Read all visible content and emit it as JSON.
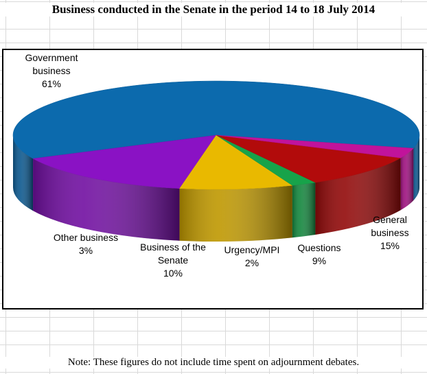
{
  "title": "Business conducted in the Senate in the period 14 to 18 July 2014",
  "note": "Note: These figures do not include time spent on adjournment debates.",
  "chart_data": {
    "type": "pie",
    "title": "Business conducted in the Senate in the period 14 to 18 July 2014",
    "slices": [
      {
        "label": "Government business",
        "lines": [
          "Government",
          "business",
          "61%"
        ],
        "value": 61,
        "color": "#0c6aad"
      },
      {
        "label": "General business",
        "lines": [
          "General",
          "business",
          "15%"
        ],
        "value": 15,
        "color": "#8a12c4"
      },
      {
        "label": "Questions",
        "lines": [
          "Questions",
          "9%"
        ],
        "value": 9,
        "color": "#e9b900"
      },
      {
        "label": "Urgency/MPI",
        "lines": [
          "Urgency/MPI",
          "2%"
        ],
        "value": 2,
        "color": "#17a34a"
      },
      {
        "label": "Business of the Senate",
        "lines": [
          "Business of the",
          "Senate",
          "10%"
        ],
        "value": 10,
        "color": "#b20b0b"
      },
      {
        "label": "Other business",
        "lines": [
          "Other business",
          "3%"
        ],
        "value": 3,
        "color": "#c1139b"
      }
    ],
    "legend": "none",
    "grid": false
  }
}
